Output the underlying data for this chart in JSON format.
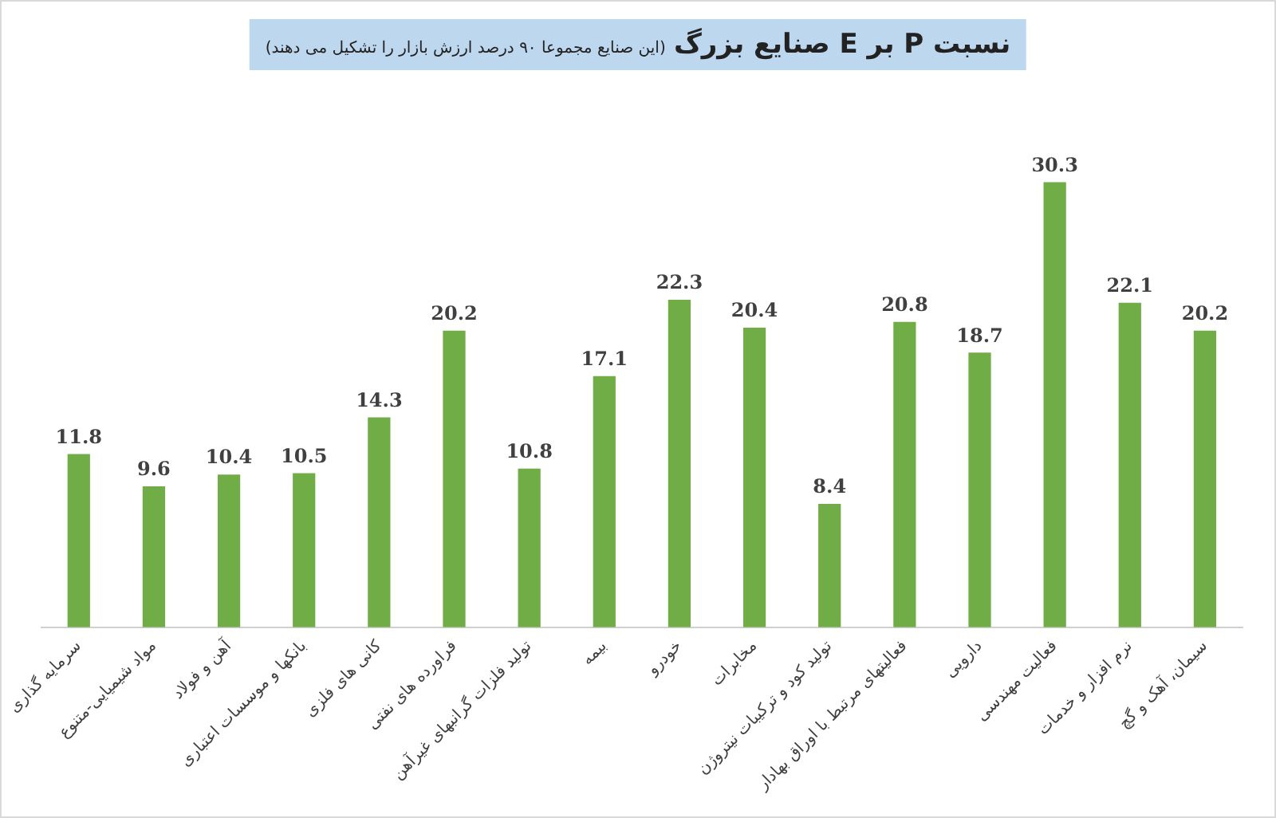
{
  "chart_data": {
    "type": "bar",
    "title": "نسبت P بر E صنایع بزرگ",
    "subtitle": "(این صنایع مجموعا ۹۰ درصد ارزش بازار را تشکیل می دهند)",
    "categories": [
      "سرمایه گذاری",
      "مواد شیمیایی-متنوع",
      "آهن و فولاد",
      "بانکها و موسسات اعتباری",
      "کانی های فلزی",
      "فراورده های نفتی",
      "تولید فلزات گرانبهای غیرآهن",
      "بیمه",
      "خودرو",
      "مخابرات",
      "تولید کود و ترکیبات نیتروژن",
      "فعالیتهای مرتبط با اوراق بهادار",
      "دارویی",
      "فعالیت مهندسی",
      "نرم افزار و خدمات",
      "سیمان، آهک و گچ"
    ],
    "values": [
      11.8,
      9.6,
      10.4,
      10.5,
      14.3,
      20.2,
      10.8,
      17.1,
      22.3,
      20.4,
      8.4,
      20.8,
      18.7,
      30.3,
      22.1,
      20.2
    ],
    "color": "#70ad47",
    "data_labels": true,
    "grid": false,
    "legend": false
  }
}
